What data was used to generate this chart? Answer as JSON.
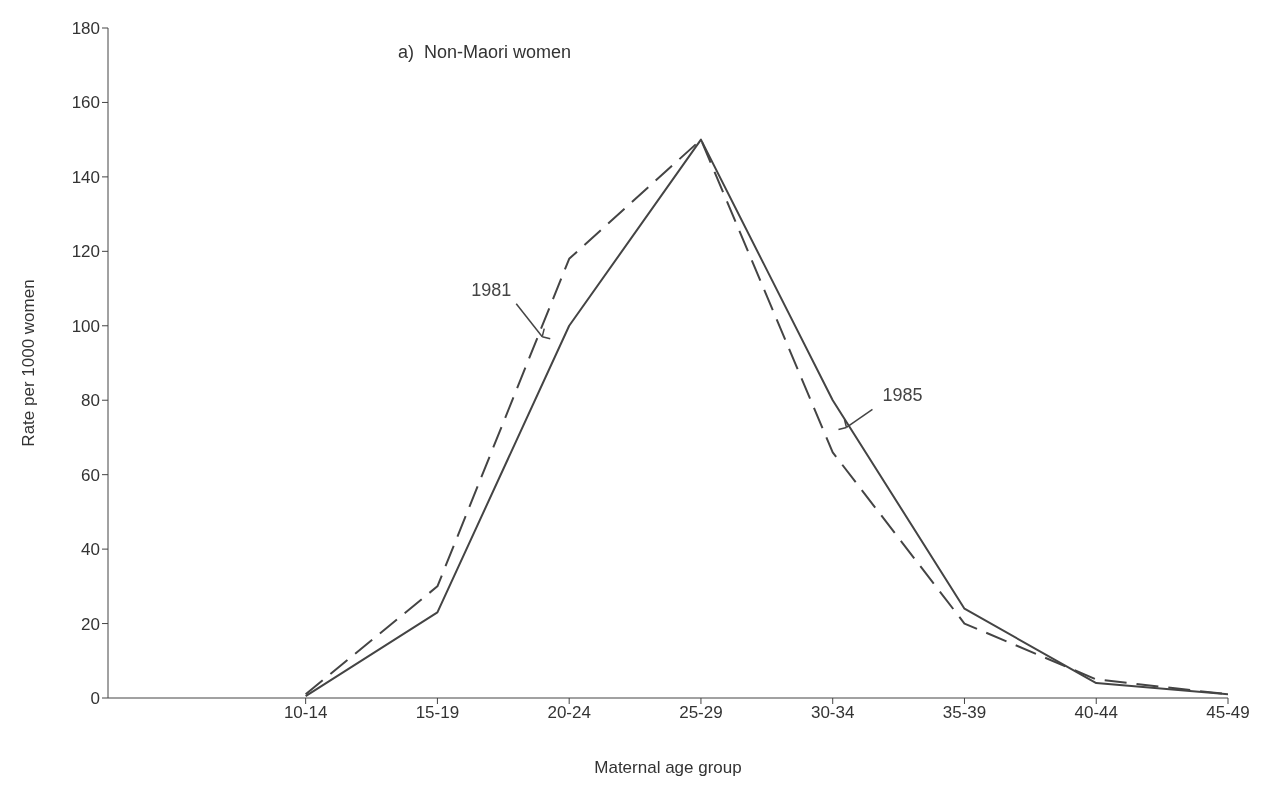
{
  "chart_data": {
    "type": "line",
    "title": "a)  Non-Maori women",
    "xlabel": "Maternal age group",
    "ylabel": "Rate per 1000 women",
    "categories": [
      "10-14",
      "15-19",
      "20-24",
      "25-29",
      "30-34",
      "35-39",
      "40-44",
      "45-49"
    ],
    "series": [
      {
        "name": "1981",
        "color": "#444444",
        "line_style": "dashed",
        "values": [
          1,
          30,
          118,
          150,
          66,
          20,
          5,
          1
        ]
      },
      {
        "name": "1985",
        "color": "#444444",
        "line_style": "solid",
        "values": [
          0.5,
          23,
          100,
          150,
          80,
          24,
          4,
          1
        ]
      }
    ],
    "ylim": [
      0,
      180
    ],
    "yticks": [
      0,
      20,
      40,
      60,
      80,
      100,
      120,
      140,
      160,
      180
    ],
    "grid": false,
    "legend": false,
    "marker": "none"
  }
}
